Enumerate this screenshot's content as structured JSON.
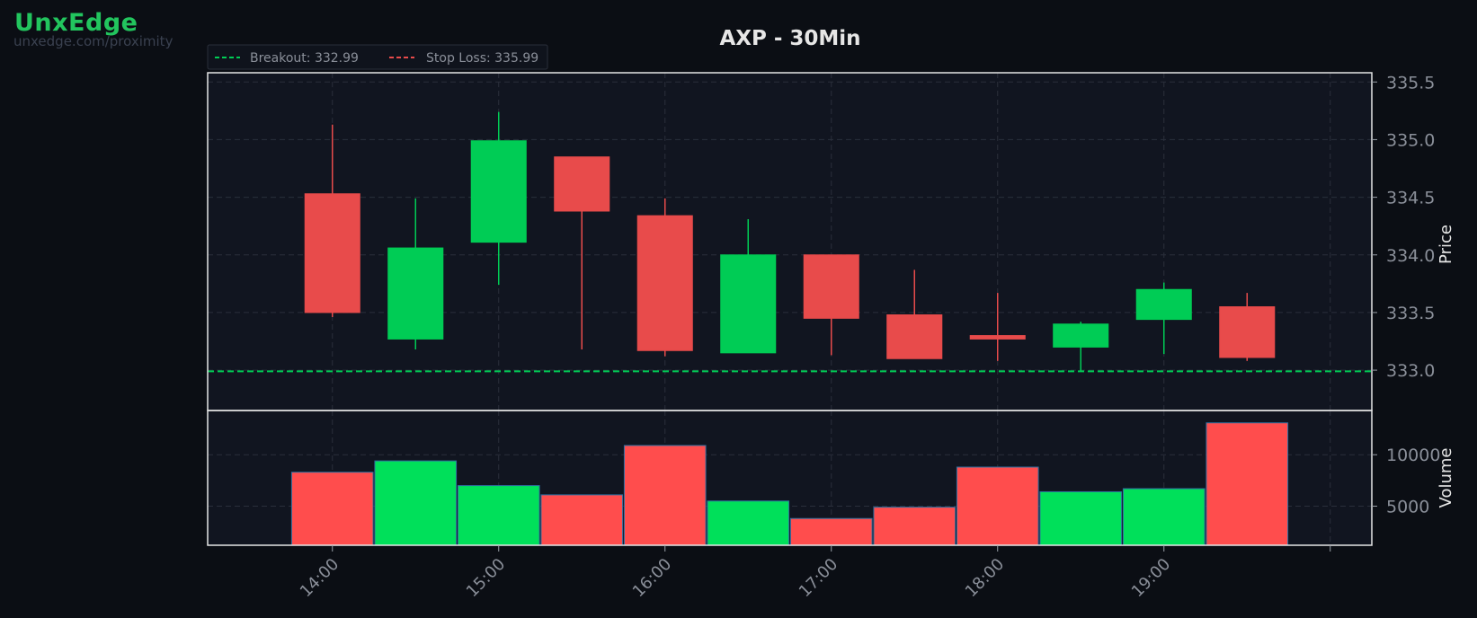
{
  "brand": {
    "name": "UnxEdge",
    "url": "unxedge.com/proximity"
  },
  "colors": {
    "up": "#00cc55",
    "down": "#e84b4b",
    "vol_up": "#00e05a",
    "vol_down": "#ff4d4d",
    "breakout": "#00cc55",
    "stop_loss": "#e84b4b",
    "background": "#0b0e14",
    "panel": "#111520"
  },
  "chart_data": {
    "type": "candlestick",
    "title": "AXP - 30Min",
    "ylabel": "Price",
    "volume_label": "Volume",
    "legend": [
      "Breakout: 332.99",
      "Stop Loss: 335.99"
    ],
    "legend_position": "top-left",
    "grid": true,
    "ylim": [
      332.65,
      335.58
    ],
    "yticks": [
      333.0,
      333.5,
      334.0,
      334.5,
      335.0,
      335.5
    ],
    "volume_ylim": [
      1200,
      14300
    ],
    "volume_yticks": [
      5000,
      10000
    ],
    "xlim": [
      "13:15",
      "20:15"
    ],
    "xticks": [
      "14:00",
      "15:00",
      "16:00",
      "17:00",
      "18:00",
      "19:00",
      "20:00"
    ],
    "xtick_labels": [
      "14:00",
      "15:00",
      "16:00",
      "17:00",
      "18:00",
      "19:00",
      ""
    ],
    "breakout": 332.99,
    "stop_loss": 335.99,
    "candles": [
      {
        "time": "14:00",
        "open": 334.53,
        "high": 335.13,
        "low": 333.46,
        "close": 333.5,
        "volume": 8300
      },
      {
        "time": "14:30",
        "open": 333.27,
        "high": 334.49,
        "low": 333.18,
        "close": 334.06,
        "volume": 9400
      },
      {
        "time": "15:00",
        "open": 334.11,
        "high": 335.24,
        "low": 333.74,
        "close": 334.99,
        "volume": 7000
      },
      {
        "time": "15:30",
        "open": 334.85,
        "high": 334.85,
        "low": 333.18,
        "close": 334.38,
        "volume": 6100
      },
      {
        "time": "16:00",
        "open": 334.34,
        "high": 334.49,
        "low": 333.12,
        "close": 333.17,
        "volume": 10900
      },
      {
        "time": "16:30",
        "open": 333.15,
        "high": 334.31,
        "low": 333.15,
        "close": 334.0,
        "volume": 5500
      },
      {
        "time": "17:00",
        "open": 334.0,
        "high": 334.0,
        "low": 333.13,
        "close": 333.45,
        "volume": 3800
      },
      {
        "time": "17:30",
        "open": 333.48,
        "high": 333.87,
        "low": 333.1,
        "close": 333.1,
        "volume": 4900
      },
      {
        "time": "18:00",
        "open": 333.3,
        "high": 333.67,
        "low": 333.08,
        "close": 333.27,
        "volume": 8800
      },
      {
        "time": "18:30",
        "open": 333.2,
        "high": 333.42,
        "low": 332.99,
        "close": 333.4,
        "volume": 6400
      },
      {
        "time": "19:00",
        "open": 333.44,
        "high": 333.76,
        "low": 333.14,
        "close": 333.7,
        "volume": 6700
      },
      {
        "time": "19:30",
        "open": 333.55,
        "high": 333.67,
        "low": 333.08,
        "close": 333.11,
        "volume": 13100
      }
    ]
  }
}
